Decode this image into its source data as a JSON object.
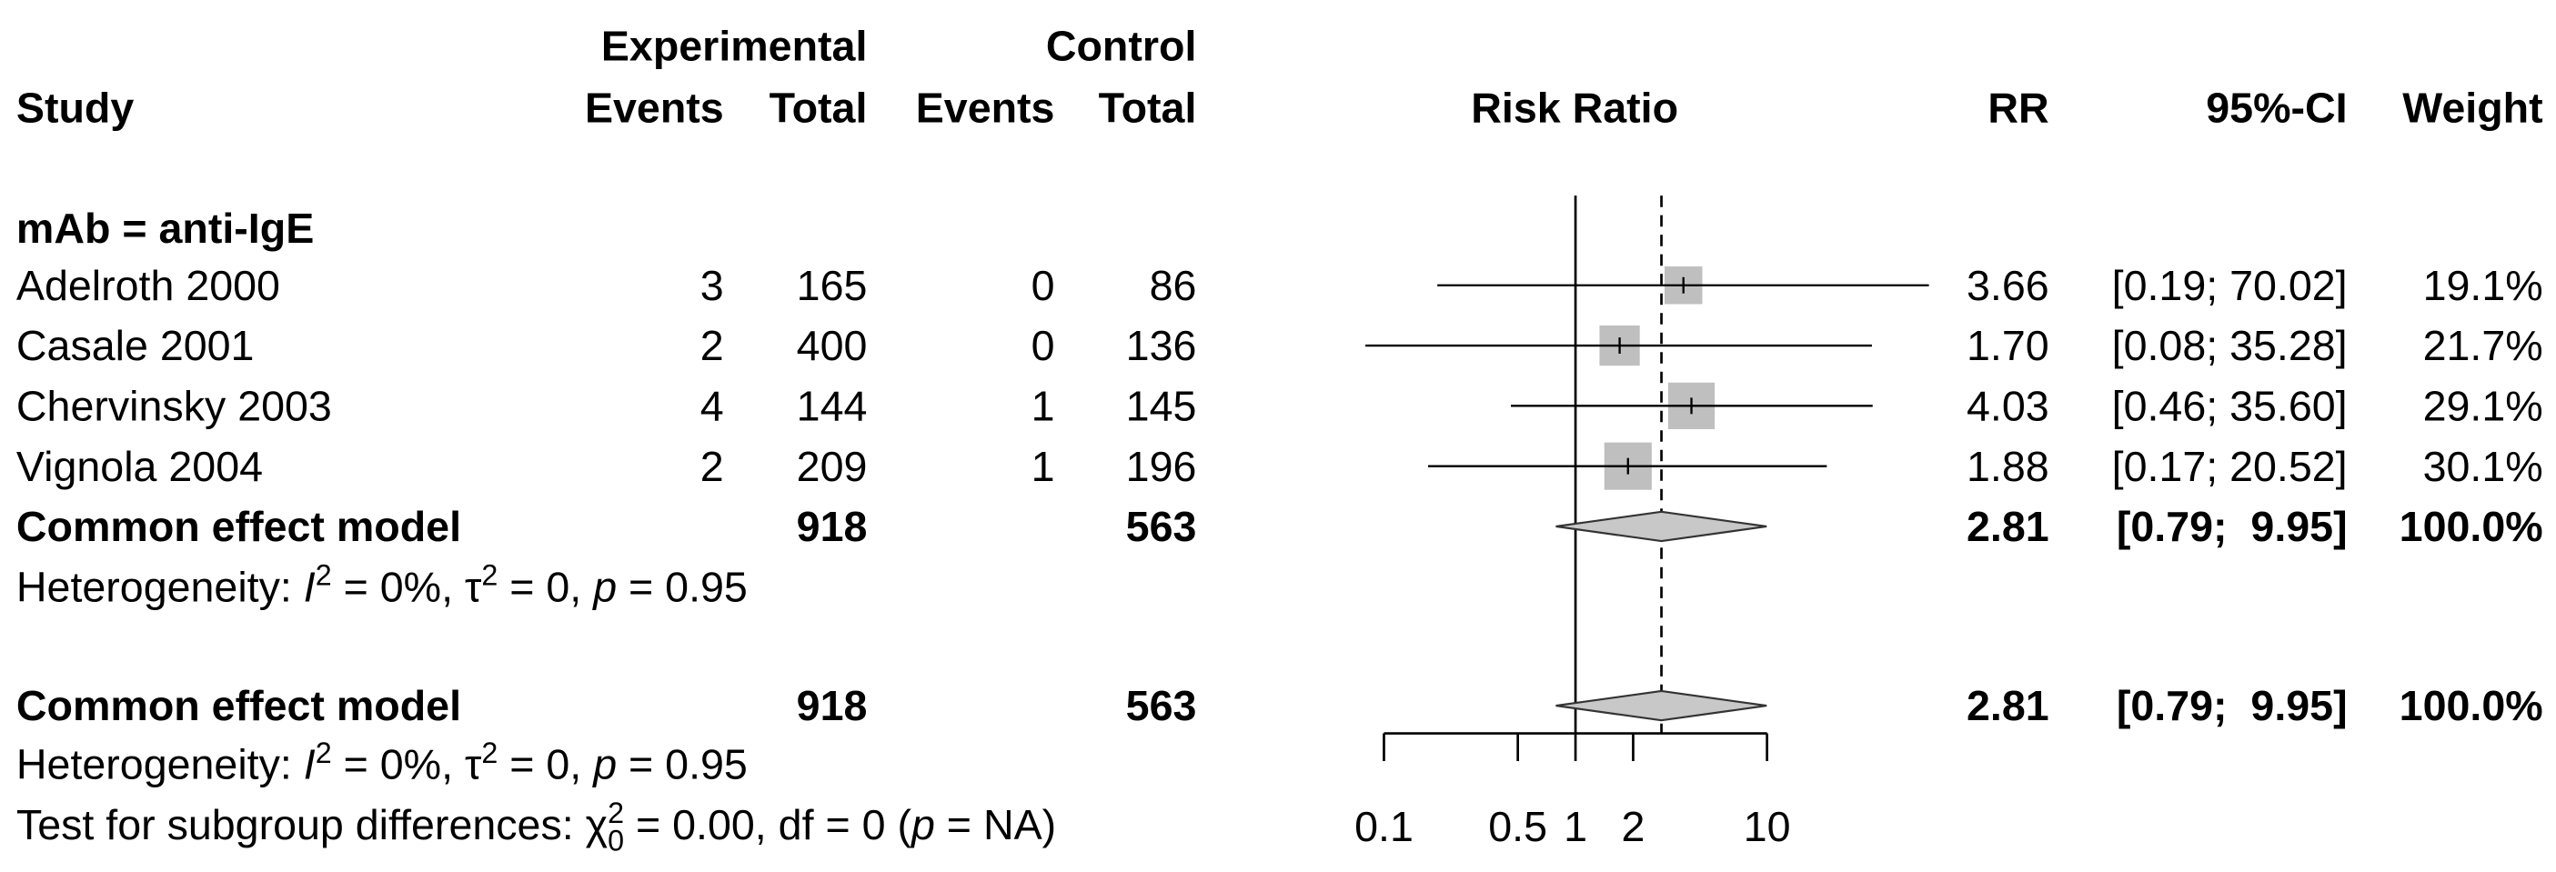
{
  "chart_data": {
    "type": "forest",
    "columns": {
      "group_experimental": "Experimental",
      "group_control": "Control",
      "study": "Study",
      "e_events": "Events",
      "e_total": "Total",
      "c_events": "Events",
      "c_total": "Total",
      "plot": "Risk Ratio",
      "rr": "RR",
      "ci": "95%-CI",
      "weight": "Weight"
    },
    "subgroups": [
      {
        "label": "mAb = anti-IgE",
        "studies": [
          {
            "name": "Adelroth 2000",
            "e_events": 3,
            "e_total": 165,
            "c_events": 0,
            "c_total": 86,
            "rr": 3.66,
            "lower": 0.19,
            "upper": 70.02,
            "ci_label": "[0.19; 70.02]",
            "weight": 19.1,
            "weight_label": "19.1%"
          },
          {
            "name": "Casale 2001",
            "e_events": 2,
            "e_total": 400,
            "c_events": 0,
            "c_total": 136,
            "rr": 1.7,
            "rr_label": "1.70",
            "lower": 0.08,
            "upper": 35.28,
            "ci_label": "[0.08; 35.28]",
            "weight": 21.7,
            "weight_label": "21.7%"
          },
          {
            "name": "Chervinsky 2003",
            "e_events": 4,
            "e_total": 144,
            "c_events": 1,
            "c_total": 145,
            "rr": 4.03,
            "lower": 0.46,
            "upper": 35.6,
            "ci_label": "[0.46; 35.60]",
            "weight": 29.1,
            "weight_label": "29.1%"
          },
          {
            "name": "Vignola 2004",
            "e_events": 2,
            "e_total": 209,
            "c_events": 1,
            "c_total": 196,
            "rr": 1.88,
            "lower": 0.17,
            "upper": 20.52,
            "ci_label": "[0.17; 20.52]",
            "weight": 30.1,
            "weight_label": "30.1%"
          }
        ],
        "summary": {
          "name": "Common effect model",
          "e_total": 918,
          "c_total": 563,
          "rr": 2.81,
          "lower": 0.79,
          "upper": 9.95,
          "ci_label": "[0.79;  9.95]",
          "weight": 100,
          "weight_label": "100.0%"
        },
        "heterogeneity": [
          {
            "text": "Heterogeneity: "
          },
          {
            "text": "I",
            "style": "italic"
          },
          {
            "text": "2",
            "style": "sup"
          },
          {
            "text": " = 0%, τ"
          },
          {
            "text": "2",
            "style": "sup"
          },
          {
            "text": " = 0, "
          },
          {
            "text": "p",
            "style": "italic"
          },
          {
            "text": " = 0.95"
          }
        ]
      }
    ],
    "overall": {
      "name": "Common effect model",
      "e_total": 918,
      "c_total": 563,
      "rr": 2.81,
      "lower": 0.79,
      "upper": 9.95,
      "ci_label": "[0.79;  9.95]",
      "weight": 100,
      "weight_label": "100.0%"
    },
    "heterogeneity": [
      {
        "text": "Heterogeneity: "
      },
      {
        "text": "I",
        "style": "italic"
      },
      {
        "text": "2",
        "style": "sup"
      },
      {
        "text": " = 0%, τ"
      },
      {
        "text": "2",
        "style": "sup"
      },
      {
        "text": " = 0, "
      },
      {
        "text": "p",
        "style": "italic"
      },
      {
        "text": " = 0.95"
      }
    ],
    "subgroup_test": [
      {
        "text": "Test for subgroup differences: χ"
      },
      {
        "text": "2",
        "style": "sup"
      },
      {
        "text": "0",
        "style": "sub"
      },
      {
        "text": " = 0.00, df = 0 ("
      },
      {
        "text": "p",
        "style": "italic"
      },
      {
        "text": " = NA)"
      }
    ],
    "log_scale": true,
    "xlim": [
      0.1,
      10
    ],
    "xticks": [
      0.1,
      0.5,
      1,
      2,
      10
    ],
    "reference_line": 1,
    "subgroup_color": "#a8a8a8",
    "square_color": "#bfbfbf",
    "diamond_color": "#c8c8c8"
  }
}
